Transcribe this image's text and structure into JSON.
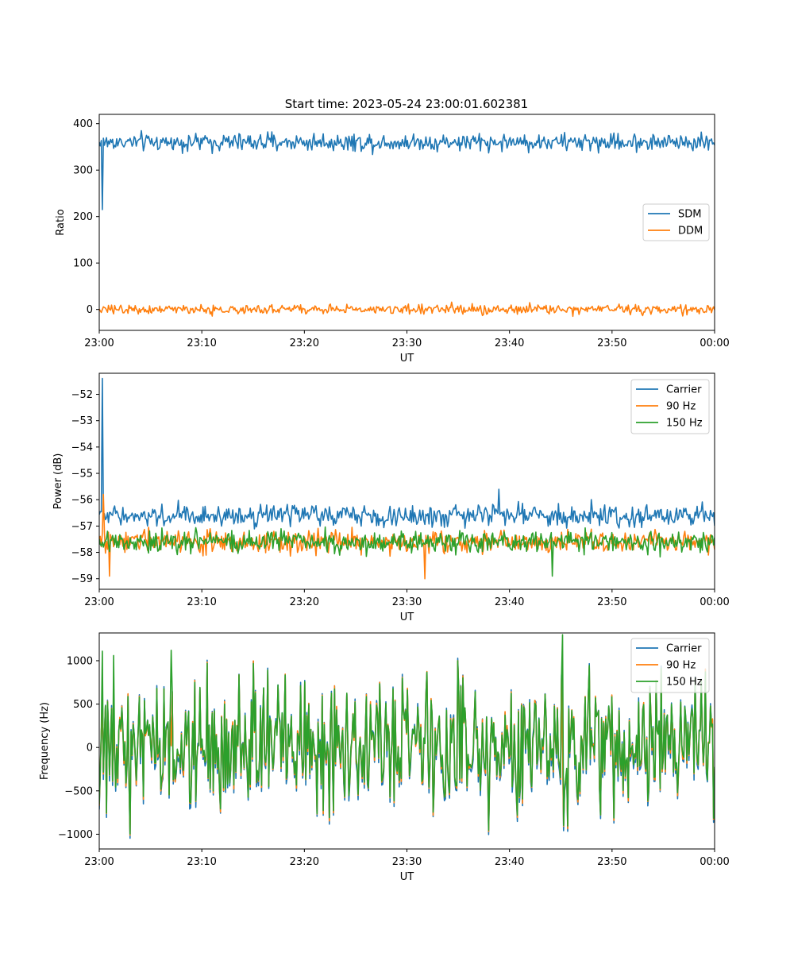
{
  "figure": {
    "title": "Start time: 2023-05-24 23:00:01.602381"
  },
  "chart_data": [
    {
      "type": "line",
      "title": "Start time: 2023-05-24 23:00:01.602381",
      "xlabel": "UT",
      "ylabel": "Ratio",
      "x_ticks": [
        "23:00",
        "23:10",
        "23:20",
        "23:30",
        "23:40",
        "23:50",
        "00:00"
      ],
      "x_range_minutes": [
        0,
        60
      ],
      "y_ticks": [
        0,
        100,
        200,
        300,
        400
      ],
      "ylim": [
        -45,
        420
      ],
      "legend_position": "center-right",
      "grid": false,
      "series": [
        {
          "name": "SDM",
          "color": "#1f77b4",
          "mean": 360,
          "noise": 16,
          "spikes": [
            [
              0.35,
              215
            ]
          ]
        },
        {
          "name": "DDM",
          "color": "#ff7f0e",
          "mean": 0,
          "noise": 9,
          "spikes": []
        }
      ]
    },
    {
      "type": "line",
      "xlabel": "UT",
      "ylabel": "Power (dB)",
      "x_ticks": [
        "23:00",
        "23:10",
        "23:20",
        "23:30",
        "23:40",
        "23:50",
        "00:00"
      ],
      "x_range_minutes": [
        0,
        60
      ],
      "y_ticks": [
        -52,
        -53,
        -54,
        -55,
        -56,
        -57,
        -58,
        -59
      ],
      "ylim": [
        -59.4,
        -51.2
      ],
      "legend_position": "top-right",
      "grid": false,
      "series": [
        {
          "name": "Carrier",
          "color": "#1f77b4",
          "mean": -56.6,
          "noise": 0.35,
          "spikes": [
            [
              0.3,
              -51.4
            ],
            [
              39.0,
              -55.6
            ]
          ]
        },
        {
          "name": "90 Hz",
          "color": "#ff7f0e",
          "mean": -57.6,
          "noise": 0.35,
          "spikes": [
            [
              0.4,
              -55.8
            ],
            [
              1.0,
              -58.9
            ],
            [
              31.8,
              -59.0
            ]
          ]
        },
        {
          "name": "150 Hz",
          "color": "#2ca02c",
          "mean": -57.6,
          "noise": 0.35,
          "spikes": [
            [
              44.2,
              -58.9
            ]
          ]
        }
      ]
    },
    {
      "type": "line",
      "xlabel": "UT",
      "ylabel": "Frequency (Hz)",
      "x_ticks": [
        "23:00",
        "23:10",
        "23:20",
        "23:30",
        "23:40",
        "23:50",
        "00:00"
      ],
      "x_range_minutes": [
        0,
        60
      ],
      "y_ticks": [
        1000,
        500,
        0,
        -500,
        -1000
      ],
      "ylim": [
        -1170,
        1320
      ],
      "legend_position": "top-right",
      "grid": false,
      "series": [
        {
          "name": "Carrier",
          "color": "#1f77b4",
          "mean": 0,
          "noise": 380,
          "offset": -60
        },
        {
          "name": "90 Hz",
          "color": "#ff7f0e",
          "mean": 0,
          "noise": 380,
          "offset": -20
        },
        {
          "name": "150 Hz",
          "color": "#2ca02c",
          "mean": 0,
          "noise": 380,
          "offset": 0,
          "spikes": [
            [
              45.2,
              1300
            ],
            [
              0.3,
              1110
            ],
            [
              1.4,
              1060
            ],
            [
              7.0,
              1120
            ]
          ]
        }
      ]
    }
  ]
}
